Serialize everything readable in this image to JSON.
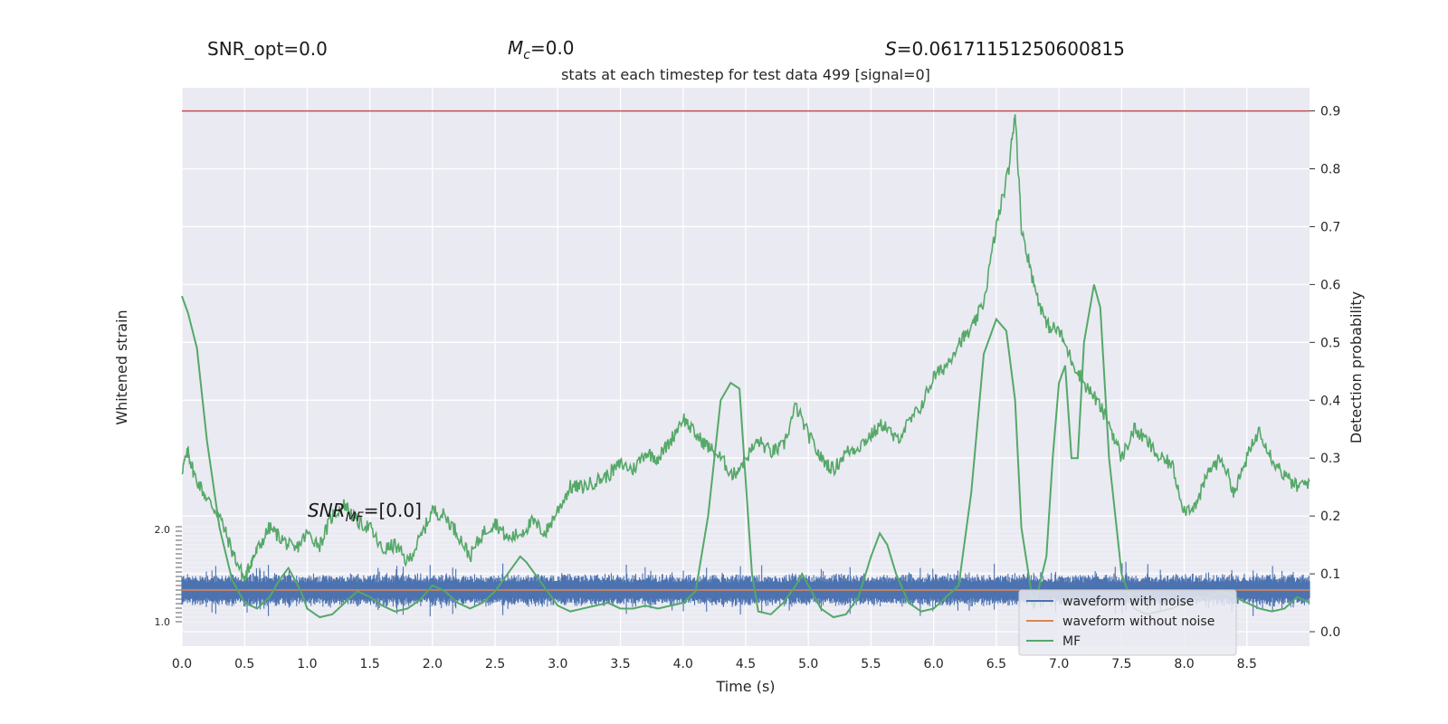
{
  "header": {
    "snr_opt": "SNR_opt=0.0",
    "mc_symbol": "M",
    "mc_sub": "c",
    "mc_value": "=0.0",
    "s_symbol": "S",
    "s_value": "=0.06171151250600815"
  },
  "annotation": {
    "snr_symbol": "SNR",
    "snr_sub": "MF",
    "snr_value": "=[0.0]"
  },
  "colors": {
    "plot_bg": "#eaeaf2",
    "grid": "#ffffff",
    "noise": "#4c72b0",
    "clean": "#dd8452",
    "mf": "#55a868",
    "prob": "#55a868",
    "threshold": "#c44e52"
  },
  "chart_data": {
    "type": "line",
    "title": "stats at each timestep for test data 499 [signal=0]",
    "xlabel": "Time (s)",
    "ylabel_left": "Whitened strain",
    "ylabel_right": "Detection probability",
    "xlim": [
      0.0,
      9.0
    ],
    "ylim_right": [
      -0.025,
      0.94
    ],
    "xticks": [
      "0.0",
      "0.5",
      "1.0",
      "1.5",
      "2.0",
      "2.5",
      "3.0",
      "3.5",
      "4.0",
      "4.5",
      "5.0",
      "5.5",
      "6.0",
      "6.5",
      "7.0",
      "7.5",
      "8.0",
      "8.5"
    ],
    "yticks_right": [
      "0.0",
      "0.1",
      "0.2",
      "0.3",
      "0.4",
      "0.5",
      "0.6",
      "0.7",
      "0.8",
      "0.9"
    ],
    "yticks_left_visible": [
      "2.0",
      "1.0"
    ],
    "threshold": 0.9,
    "legend": {
      "placement": "lower-right",
      "entries": [
        "waveform with noise",
        "waveform without noise",
        "MF"
      ]
    },
    "noise_band": {
      "center": 0.072,
      "amplitude": 0.03,
      "samples": 1800
    },
    "clean_level": 0.072,
    "probability": {
      "x": [
        0.0,
        0.05,
        0.1,
        0.2,
        0.3,
        0.4,
        0.5,
        0.55,
        0.6,
        0.7,
        0.8,
        0.9,
        1.0,
        1.1,
        1.2,
        1.3,
        1.4,
        1.5,
        1.6,
        1.7,
        1.8,
        1.9,
        2.0,
        2.1,
        2.2,
        2.3,
        2.4,
        2.5,
        2.6,
        2.7,
        2.8,
        2.9,
        3.0,
        3.1,
        3.2,
        3.3,
        3.4,
        3.5,
        3.6,
        3.7,
        3.8,
        3.9,
        4.0,
        4.1,
        4.2,
        4.3,
        4.4,
        4.5,
        4.6,
        4.7,
        4.8,
        4.9,
        5.0,
        5.1,
        5.2,
        5.3,
        5.4,
        5.5,
        5.6,
        5.7,
        5.8,
        5.9,
        6.0,
        6.1,
        6.2,
        6.3,
        6.4,
        6.5,
        6.6,
        6.65,
        6.7,
        6.8,
        6.9,
        7.0,
        7.1,
        7.2,
        7.3,
        7.4,
        7.5,
        7.6,
        7.7,
        7.8,
        7.9,
        8.0,
        8.1,
        8.2,
        8.3,
        8.4,
        8.5,
        8.6,
        8.7,
        8.8,
        8.9,
        9.0
      ],
      "y": [
        0.28,
        0.31,
        0.27,
        0.23,
        0.2,
        0.14,
        0.09,
        0.12,
        0.14,
        0.18,
        0.16,
        0.14,
        0.17,
        0.15,
        0.2,
        0.22,
        0.19,
        0.18,
        0.14,
        0.15,
        0.12,
        0.16,
        0.21,
        0.2,
        0.17,
        0.13,
        0.17,
        0.19,
        0.16,
        0.17,
        0.19,
        0.17,
        0.21,
        0.25,
        0.25,
        0.26,
        0.27,
        0.29,
        0.28,
        0.31,
        0.3,
        0.33,
        0.37,
        0.34,
        0.32,
        0.3,
        0.27,
        0.3,
        0.33,
        0.31,
        0.32,
        0.39,
        0.34,
        0.3,
        0.28,
        0.31,
        0.32,
        0.34,
        0.36,
        0.33,
        0.36,
        0.39,
        0.44,
        0.46,
        0.5,
        0.52,
        0.57,
        0.7,
        0.8,
        0.9,
        0.7,
        0.6,
        0.53,
        0.52,
        0.47,
        0.43,
        0.4,
        0.36,
        0.3,
        0.35,
        0.33,
        0.3,
        0.29,
        0.21,
        0.22,
        0.28,
        0.3,
        0.24,
        0.3,
        0.35,
        0.3,
        0.27,
        0.25,
        0.26
      ]
    },
    "mf": {
      "x": [
        0.0,
        0.05,
        0.12,
        0.2,
        0.3,
        0.4,
        0.5,
        0.6,
        0.7,
        0.78,
        0.85,
        0.95,
        1.0,
        1.1,
        1.2,
        1.3,
        1.4,
        1.5,
        1.6,
        1.7,
        1.8,
        1.9,
        2.0,
        2.1,
        2.2,
        2.3,
        2.4,
        2.5,
        2.6,
        2.7,
        2.75,
        2.85,
        2.95,
        3.0,
        3.1,
        3.2,
        3.3,
        3.4,
        3.5,
        3.6,
        3.7,
        3.8,
        3.9,
        4.0,
        4.1,
        4.2,
        4.3,
        4.38,
        4.45,
        4.55,
        4.6,
        4.7,
        4.8,
        4.9,
        4.95,
        5.0,
        5.1,
        5.2,
        5.3,
        5.4,
        5.5,
        5.57,
        5.63,
        5.7,
        5.8,
        5.9,
        6.0,
        6.1,
        6.2,
        6.3,
        6.4,
        6.5,
        6.58,
        6.65,
        6.7,
        6.8,
        6.9,
        6.95,
        7.0,
        7.05,
        7.1,
        7.15,
        7.2,
        7.28,
        7.33,
        7.4,
        7.5,
        7.6,
        7.7,
        7.8,
        7.9,
        8.0,
        8.1,
        8.2,
        8.3,
        8.4,
        8.5,
        8.6,
        8.7,
        8.8,
        8.9,
        9.0
      ],
      "y": [
        0.58,
        0.55,
        0.49,
        0.33,
        0.18,
        0.09,
        0.05,
        0.04,
        0.06,
        0.09,
        0.11,
        0.07,
        0.04,
        0.025,
        0.03,
        0.05,
        0.07,
        0.06,
        0.045,
        0.035,
        0.04,
        0.055,
        0.08,
        0.07,
        0.05,
        0.04,
        0.05,
        0.07,
        0.1,
        0.13,
        0.12,
        0.09,
        0.06,
        0.045,
        0.035,
        0.04,
        0.045,
        0.05,
        0.04,
        0.04,
        0.045,
        0.04,
        0.045,
        0.05,
        0.07,
        0.2,
        0.4,
        0.43,
        0.42,
        0.1,
        0.035,
        0.03,
        0.05,
        0.08,
        0.1,
        0.08,
        0.04,
        0.025,
        0.03,
        0.06,
        0.13,
        0.17,
        0.15,
        0.1,
        0.05,
        0.035,
        0.04,
        0.06,
        0.08,
        0.24,
        0.48,
        0.54,
        0.52,
        0.4,
        0.18,
        0.04,
        0.13,
        0.3,
        0.43,
        0.46,
        0.3,
        0.3,
        0.5,
        0.6,
        0.56,
        0.3,
        0.1,
        0.04,
        0.03,
        0.035,
        0.04,
        0.05,
        0.06,
        0.06,
        0.07,
        0.06,
        0.05,
        0.04,
        0.035,
        0.04,
        0.06,
        0.05
      ]
    }
  }
}
